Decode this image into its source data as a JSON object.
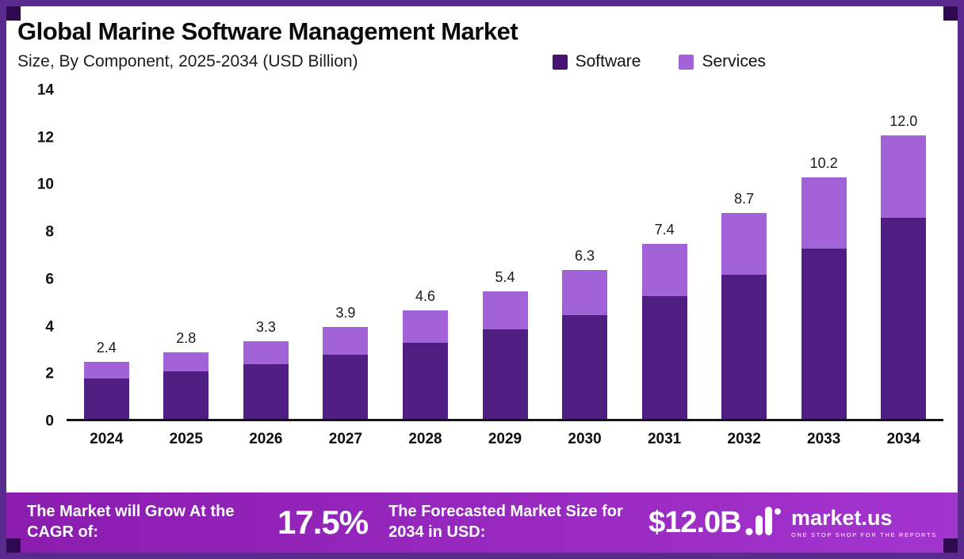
{
  "header": {
    "title": "Global Marine Software Management Market",
    "subtitle": "Size, By Component, 2025-2034 (USD Billion)"
  },
  "legend": {
    "items": [
      {
        "label": "Software",
        "color": "#471570"
      },
      {
        "label": "Services",
        "color": "#a263d9"
      }
    ]
  },
  "chart_data": {
    "type": "bar",
    "stacked": true,
    "title": "Global Marine Software Management Market",
    "subtitle": "Size, By Component, 2025-2034 (USD Billion)",
    "categories": [
      "2024",
      "2025",
      "2026",
      "2027",
      "2028",
      "2029",
      "2030",
      "2031",
      "2032",
      "2033",
      "2034"
    ],
    "series": [
      {
        "name": "Software",
        "color": "#4e1e82",
        "values": [
          1.7,
          2.0,
          2.3,
          2.7,
          3.2,
          3.8,
          4.4,
          5.2,
          6.1,
          7.2,
          8.5
        ]
      },
      {
        "name": "Services",
        "color": "#a263d9",
        "values": [
          0.7,
          0.8,
          1.0,
          1.2,
          1.4,
          1.6,
          1.9,
          2.2,
          2.6,
          3.0,
          3.5
        ]
      }
    ],
    "totals": [
      "2.4",
      "2.8",
      "3.3",
      "3.9",
      "4.6",
      "5.4",
      "6.3",
      "7.4",
      "8.7",
      "10.2",
      "12.0"
    ],
    "xlabel": "",
    "ylabel": "",
    "ylim": [
      0,
      14
    ],
    "yticks": [
      0,
      2,
      4,
      6,
      8,
      10,
      12,
      14
    ],
    "grid": false,
    "legend_position": "top"
  },
  "footer": {
    "cagr_label": "The Market will Grow At the CAGR of:",
    "cagr_value": "17.5%",
    "forecast_label": "The Forecasted Market Size for 2034 in USD:",
    "forecast_value": "$12.0B",
    "brand_name": "market.us",
    "brand_tagline": "ONE STOP SHOP FOR THE REPORTS"
  },
  "colors": {
    "frame": "#5b2a8e",
    "corner": "#2e0b50",
    "footer_gradient_start": "#8a1cae",
    "footer_gradient_end": "#a335cf",
    "baseline": "#151515"
  }
}
